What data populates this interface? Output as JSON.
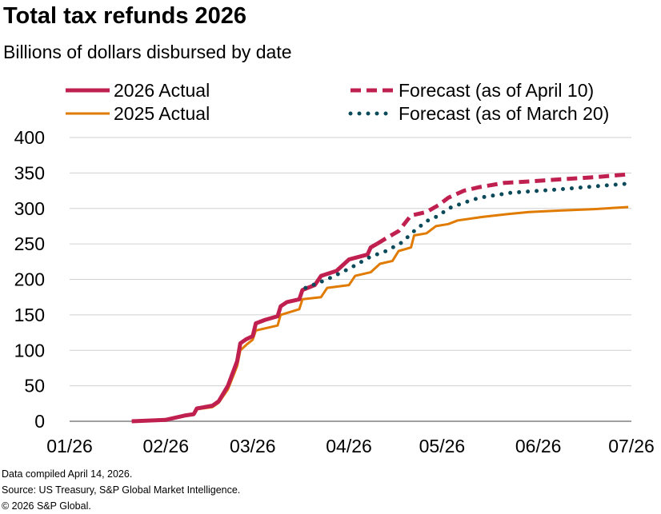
{
  "chart_data": {
    "type": "line",
    "title": "Total tax refunds 2026",
    "subtitle": "Billions of dollars disbursed by date",
    "xlabel": "",
    "ylabel": "",
    "ylim": [
      0,
      400
    ],
    "yticks": [
      0,
      50,
      100,
      150,
      200,
      250,
      300,
      350,
      400
    ],
    "xlim": [
      "2026-01-01",
      "2026-07-01"
    ],
    "xticks": [
      {
        "date": "2026-01-01",
        "label": "01/26"
      },
      {
        "date": "2026-02-01",
        "label": "02/26"
      },
      {
        "date": "2026-03-01",
        "label": "03/26"
      },
      {
        "date": "2026-04-01",
        "label": "04/26"
      },
      {
        "date": "2026-05-01",
        "label": "05/26"
      },
      {
        "date": "2026-06-01",
        "label": "06/26"
      },
      {
        "date": "2026-07-01",
        "label": "07/26"
      }
    ],
    "grid": "horizontal",
    "legend_position": "top",
    "series": [
      {
        "name": "2026 Actual",
        "color": "#C0204F",
        "style": "solid-thick",
        "points": [
          [
            "2026-01-21",
            0
          ],
          [
            "2026-02-01",
            2
          ],
          [
            "2026-02-07",
            8
          ],
          [
            "2026-02-10",
            10
          ],
          [
            "2026-02-11",
            18
          ],
          [
            "2026-02-16",
            22
          ],
          [
            "2026-02-18",
            28
          ],
          [
            "2026-02-21",
            50
          ],
          [
            "2026-02-24",
            85
          ],
          [
            "2026-02-25",
            110
          ],
          [
            "2026-02-27",
            116
          ],
          [
            "2026-03-01",
            120
          ],
          [
            "2026-03-02",
            138
          ],
          [
            "2026-03-05",
            143
          ],
          [
            "2026-03-09",
            148
          ],
          [
            "2026-03-10",
            162
          ],
          [
            "2026-03-12",
            168
          ],
          [
            "2026-03-16",
            172
          ],
          [
            "2026-03-17",
            185
          ],
          [
            "2026-03-21",
            192
          ],
          [
            "2026-03-23",
            205
          ],
          [
            "2026-03-28",
            212
          ],
          [
            "2026-04-01",
            228
          ],
          [
            "2026-04-07",
            235
          ],
          [
            "2026-04-08",
            245
          ],
          [
            "2026-04-10",
            250
          ]
        ]
      },
      {
        "name": "2025 Actual",
        "color": "#E07B00",
        "style": "solid",
        "points": [
          [
            "2026-01-21",
            0
          ],
          [
            "2026-02-01",
            3
          ],
          [
            "2026-02-07",
            8
          ],
          [
            "2026-02-10",
            10
          ],
          [
            "2026-02-11",
            17
          ],
          [
            "2026-02-16",
            20
          ],
          [
            "2026-02-18",
            26
          ],
          [
            "2026-02-21",
            45
          ],
          [
            "2026-02-24",
            78
          ],
          [
            "2026-02-25",
            100
          ],
          [
            "2026-02-27",
            108
          ],
          [
            "2026-03-01",
            115
          ],
          [
            "2026-03-02",
            128
          ],
          [
            "2026-03-09",
            135
          ],
          [
            "2026-03-10",
            150
          ],
          [
            "2026-03-16",
            158
          ],
          [
            "2026-03-17",
            172
          ],
          [
            "2026-03-23",
            175
          ],
          [
            "2026-03-25",
            188
          ],
          [
            "2026-04-01",
            192
          ],
          [
            "2026-04-03",
            205
          ],
          [
            "2026-04-08",
            210
          ],
          [
            "2026-04-11",
            222
          ],
          [
            "2026-04-15",
            226
          ],
          [
            "2026-04-17",
            240
          ],
          [
            "2026-04-21",
            245
          ],
          [
            "2026-04-22",
            262
          ],
          [
            "2026-04-26",
            265
          ],
          [
            "2026-04-29",
            275
          ],
          [
            "2026-05-03",
            278
          ],
          [
            "2026-05-06",
            283
          ],
          [
            "2026-05-14",
            288
          ],
          [
            "2026-05-22",
            292
          ],
          [
            "2026-05-29",
            295
          ],
          [
            "2026-06-08",
            297
          ],
          [
            "2026-06-19",
            299
          ],
          [
            "2026-06-30",
            302
          ]
        ]
      },
      {
        "name": "Forecast (as of April 10)",
        "color": "#C0204F",
        "style": "dashed",
        "points": [
          [
            "2026-04-10",
            250
          ],
          [
            "2026-04-13",
            258
          ],
          [
            "2026-04-17",
            268
          ],
          [
            "2026-04-21",
            290
          ],
          [
            "2026-04-26",
            295
          ],
          [
            "2026-04-30",
            305
          ],
          [
            "2026-05-03",
            315
          ],
          [
            "2026-05-08",
            325
          ],
          [
            "2026-05-13",
            330
          ],
          [
            "2026-05-21",
            336
          ],
          [
            "2026-05-29",
            338
          ],
          [
            "2026-06-08",
            341
          ],
          [
            "2026-06-19",
            344
          ],
          [
            "2026-06-30",
            348
          ]
        ]
      },
      {
        "name": "Forecast (as of March 20)",
        "color": "#0B4A5A",
        "style": "dotted",
        "points": [
          [
            "2026-03-18",
            188
          ],
          [
            "2026-03-25",
            200
          ],
          [
            "2026-04-01",
            215
          ],
          [
            "2026-04-08",
            232
          ],
          [
            "2026-04-13",
            240
          ],
          [
            "2026-04-18",
            252
          ],
          [
            "2026-04-22",
            268
          ],
          [
            "2026-04-26",
            282
          ],
          [
            "2026-04-30",
            290
          ],
          [
            "2026-05-03",
            300
          ],
          [
            "2026-05-08",
            308
          ],
          [
            "2026-05-13",
            315
          ],
          [
            "2026-05-23",
            322
          ],
          [
            "2026-06-08",
            327
          ],
          [
            "2026-06-19",
            331
          ],
          [
            "2026-06-30",
            335
          ]
        ]
      }
    ]
  },
  "footer": {
    "compiled": "Data compiled April 14, 2026.",
    "source": "Source: US Treasury, S&P Global Market Intelligence.",
    "copyright": "© 2026 S&P Global."
  }
}
